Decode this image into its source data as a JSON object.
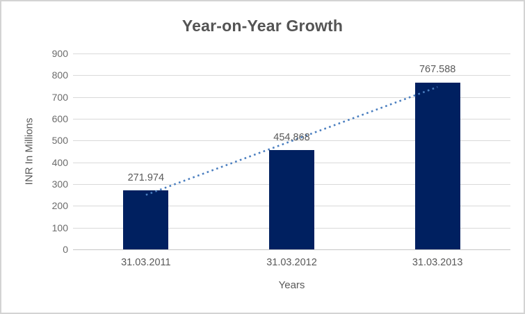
{
  "chart_data": {
    "type": "bar",
    "title": "Year-on-Year Growth",
    "xlabel": "Years",
    "ylabel": "INR In Millions",
    "categories": [
      "31.03.2011",
      "31.03.2012",
      "31.03.2013"
    ],
    "values": [
      271.974,
      454.868,
      767.588
    ],
    "data_labels": [
      "271.974",
      "454.868",
      "767.588"
    ],
    "ylim": [
      0,
      900
    ],
    "ytick_step": 100,
    "grid": true,
    "legend": "none",
    "trendline": {
      "type": "linear",
      "style": "dotted",
      "color": "#4a7ebf"
    },
    "colors": {
      "bar": "#002060",
      "gridline": "#d9d9d9",
      "axis_line": "#c6c6c6",
      "text": "#595959",
      "border": "#d3d3d3",
      "background": "#ffffff"
    }
  }
}
